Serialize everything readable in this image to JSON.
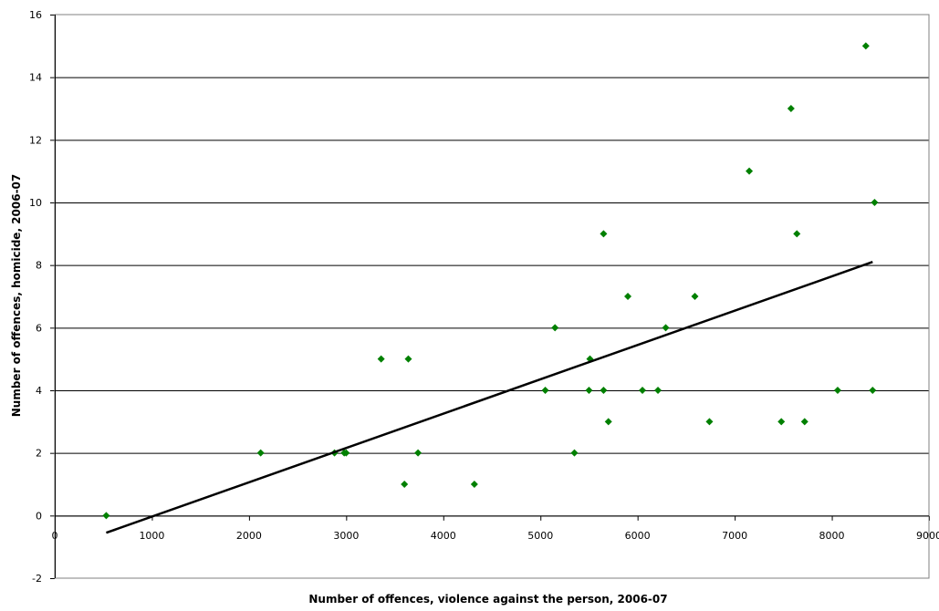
{
  "chart_data": {
    "type": "scatter",
    "title": "",
    "xlabel": "Number of offences, violence against the person, 2006-07",
    "ylabel": "Number of offences, homicide, 2006-07",
    "xlim": [
      0,
      9000
    ],
    "ylim": [
      -2,
      16
    ],
    "xticks": [
      0,
      1000,
      2000,
      3000,
      4000,
      5000,
      6000,
      7000,
      8000,
      9000
    ],
    "yticks": [
      -2,
      0,
      2,
      4,
      6,
      8,
      10,
      12,
      14,
      16
    ],
    "grid": "horizontal",
    "legend": "none",
    "colors": {
      "points": "#008000",
      "trendline": "#000000",
      "grid": "#000000"
    },
    "series": [
      {
        "points": [
          [
            530,
            0
          ],
          [
            2120,
            2
          ],
          [
            2880,
            2
          ],
          [
            2980,
            2
          ],
          [
            3000,
            2
          ],
          [
            3360,
            5
          ],
          [
            3600,
            1
          ],
          [
            3640,
            5
          ],
          [
            3740,
            2
          ],
          [
            4320,
            1
          ],
          [
            5050,
            4
          ],
          [
            5150,
            6
          ],
          [
            5350,
            2
          ],
          [
            5500,
            4
          ],
          [
            5510,
            5
          ],
          [
            5650,
            4
          ],
          [
            5650,
            9
          ],
          [
            5700,
            3
          ],
          [
            5900,
            7
          ],
          [
            6050,
            4
          ],
          [
            6210,
            4
          ],
          [
            6290,
            6
          ],
          [
            6590,
            7
          ],
          [
            6740,
            3
          ],
          [
            7150,
            11
          ],
          [
            7480,
            3
          ],
          [
            7580,
            13
          ],
          [
            7640,
            9
          ],
          [
            7720,
            3
          ],
          [
            8060,
            4
          ],
          [
            8350,
            15
          ],
          [
            8420,
            4
          ],
          [
            8440,
            10
          ]
        ]
      }
    ],
    "trendline": {
      "start": [
        530,
        -0.55
      ],
      "end": [
        8420,
        8.1
      ]
    }
  }
}
